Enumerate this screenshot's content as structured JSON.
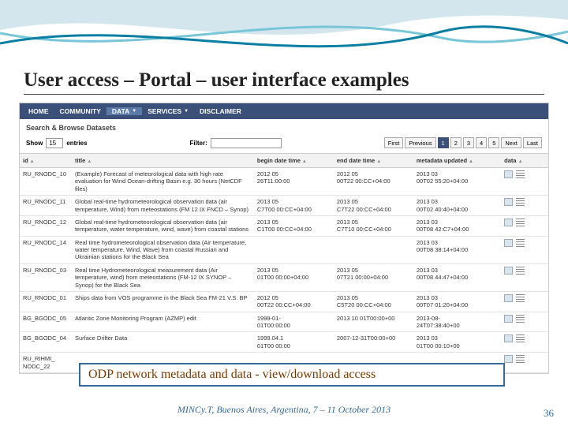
{
  "slide": {
    "title": "User access – Portal – user interface examples",
    "callout": "ODP network metadata and data  -  view/download access",
    "footer": "MINCy.T, Buenos Aires, Argentina, 7 – 11 October 2013",
    "page_number": "36"
  },
  "wave_colors": {
    "light": "#d3e6ee",
    "mid": "#79c6d8",
    "dark": "#0a7ea3"
  },
  "navbar": {
    "bg": "#3a5078",
    "items": [
      {
        "label": "HOME",
        "dropdown": false,
        "active": false
      },
      {
        "label": "COMMUNITY",
        "dropdown": false,
        "active": false
      },
      {
        "label": "DATA",
        "dropdown": true,
        "active": true
      },
      {
        "label": "SERVICES",
        "dropdown": true,
        "active": false
      },
      {
        "label": "DISCLAIMER",
        "dropdown": false,
        "active": false
      }
    ]
  },
  "section_title": "Search & Browse Datasets",
  "controls": {
    "show_label": "Show",
    "show_value": "15",
    "entries_label": "entries",
    "filter_label": "Filter:",
    "filter_value": ""
  },
  "pagination": {
    "first": "First",
    "previous": "Previous",
    "pages": [
      "1",
      "2",
      "3",
      "4",
      "5"
    ],
    "active_page": 0,
    "next": "Next",
    "last": "Last"
  },
  "table": {
    "columns": [
      {
        "key": "id",
        "label": "id"
      },
      {
        "key": "title",
        "label": "title"
      },
      {
        "key": "begin",
        "label": "begin date time"
      },
      {
        "key": "end",
        "label": "end date time"
      },
      {
        "key": "meta",
        "label": "metadata updated"
      },
      {
        "key": "data",
        "label": "data"
      }
    ],
    "rows": [
      {
        "id": "RU_RNODC_10",
        "title": "(Example) Forecast of meteorological data with high rate evaluation for Wind Ocean-drifting Basin e.g. 30 hours (NetCDF files)",
        "begin": "2012 05\n26T11:00:00",
        "end": "2012 05\n00T22 00:CC+04:00",
        "meta": "2013 03\n00T02 55:20+04:00"
      },
      {
        "id": "RU_RNODC_11",
        "title": "Global real-time hydrometeorological observation data (air temperature, Wind) from meteostations (FM 12 IX FNCD – Synop)",
        "begin": "2013 05\nC7T00 00:CC+04:00",
        "end": "2013 05\nC7T22 00:CC+04:00",
        "meta": "2013 03\n00T02 40:40+04:00"
      },
      {
        "id": "RU_RNODC_12",
        "title": "Global real-time hydrometeorological observation data (air temperature, water temperature, wind, wave) from coastal stations",
        "begin": "2013 05\nC1T00 00:CC+04:00",
        "end": "2013 05\nC7T10 00:CC+04:00",
        "meta": "2013 03\n00T08 42:C7+04:00"
      },
      {
        "id": "RU_RNODC_14",
        "title": "Real time hydrometeorological observation data (Air temperature, water temperature, Wind, Wave) from coastal Russian and Ukrainian stations for the Black Sea",
        "begin": "",
        "end": "",
        "meta": "2013 03\n00T08 38:14+04:00"
      },
      {
        "id": "RU_RNODC_03",
        "title": "Real time Hydrometeorological measurement data (Air temperature, wind) from meteostations (FM-12 IX SYNOP – Synop) for the Black Sea",
        "begin": "2013 05\n01T00 00:00+04:00",
        "end": "2013 05\n07T21 00:00+04:00",
        "meta": "2013 03\n00T08 44:47+04:00"
      },
      {
        "id": "RU_RNODC_01",
        "title": "Ships data from VOS programme in the Black Sea FM-21 V.S. BP",
        "begin": "2012 05\n00T22 00:CC+04:00",
        "end": "2013 05\nC5T20 00:CC+04:00",
        "meta": "2013 03\n00T07 01:20+04:00"
      },
      {
        "id": "BG_BGODC_05",
        "title": "Atlantic Zone Monitoring Program (AZMP) edit",
        "begin": "1999-01-\n01T00:00:00",
        "end": "2013 10 01T00:00+00",
        "meta": "2013-08-\n24T07:38:40+00"
      },
      {
        "id": "BG_BGODC_04",
        "title": "Surface Drifter Data",
        "begin": "1999.04.1\n01T00 00:00",
        "end": "2007-12-31T00:00+00",
        "meta": "2013 03\n01T00 00:10+00"
      },
      {
        "id": "RU_RIHMI_\nNODC_22",
        "title": "",
        "begin": "",
        "end": "",
        "meta": ""
      }
    ]
  }
}
